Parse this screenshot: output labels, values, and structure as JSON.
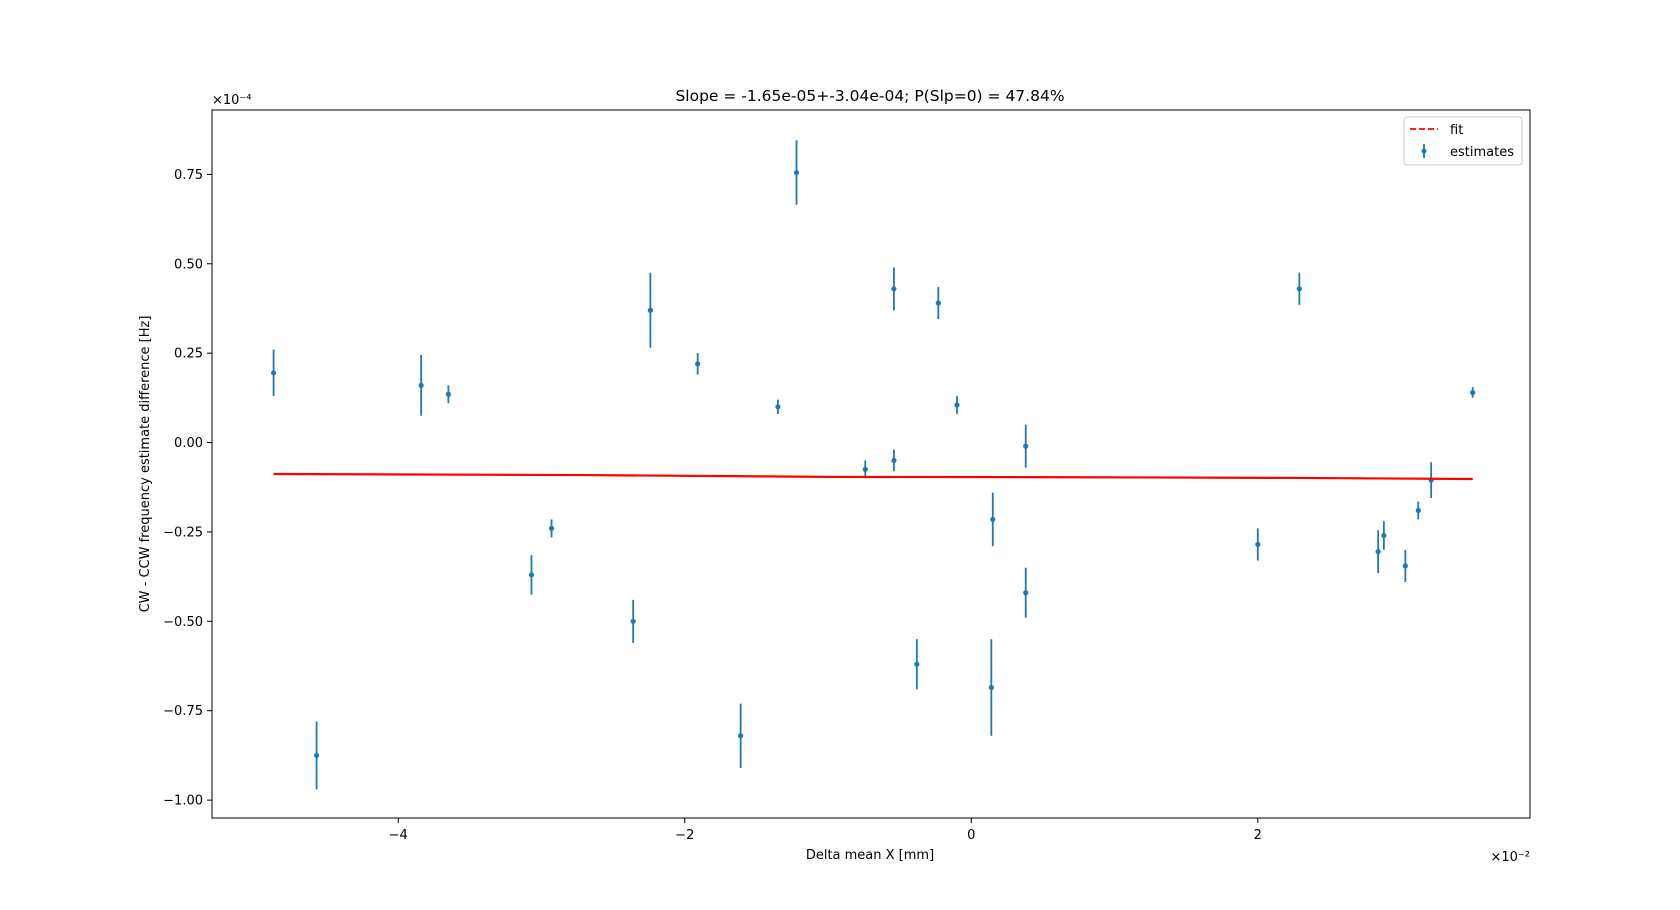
{
  "chart_data": {
    "type": "scatter",
    "title": "Slope = -1.65e-05+-3.04e-04; P(Slp=0) = 47.84%",
    "xlabel": "Delta mean X [mm]",
    "ylabel": "CW - CCW frequency estimate difference [Hz]",
    "x_multiplier": "×10⁻²",
    "y_multiplier": "×10⁻⁴",
    "xlim": [
      -5.3,
      3.9
    ],
    "ylim": [
      -1.05,
      0.93
    ],
    "x_ticks": [
      -4,
      -2,
      0,
      2
    ],
    "x_tick_labels": [
      "−4",
      "−2",
      "0",
      "2"
    ],
    "y_ticks": [
      -1.0,
      -0.75,
      -0.5,
      -0.25,
      0.0,
      0.25,
      0.5,
      0.75
    ],
    "y_tick_labels": [
      "−1.00",
      "−0.75",
      "−0.50",
      "−0.25",
      "0.00",
      "0.25",
      "0.50",
      "0.75"
    ],
    "grid": false,
    "legend_position": "top-right",
    "legend": [
      "fit",
      "estimates"
    ],
    "colors": {
      "estimates": "#1f77b4",
      "fit": "#ff0000"
    },
    "series": [
      {
        "name": "estimates",
        "kind": "errorbar",
        "points": [
          {
            "x": -4.87,
            "y": 0.195,
            "err": 0.065
          },
          {
            "x": -4.57,
            "y": -0.875,
            "err": 0.095
          },
          {
            "x": -3.84,
            "y": 0.16,
            "err": 0.085
          },
          {
            "x": -3.65,
            "y": 0.135,
            "err": 0.025
          },
          {
            "x": -3.07,
            "y": -0.37,
            "err": 0.055
          },
          {
            "x": -2.93,
            "y": -0.24,
            "err": 0.025
          },
          {
            "x": -2.36,
            "y": -0.5,
            "err": 0.06
          },
          {
            "x": -2.24,
            "y": 0.37,
            "err": 0.105
          },
          {
            "x": -1.91,
            "y": 0.22,
            "err": 0.03
          },
          {
            "x": -1.61,
            "y": -0.82,
            "err": 0.09
          },
          {
            "x": -1.35,
            "y": 0.1,
            "err": 0.02
          },
          {
            "x": -1.22,
            "y": 0.755,
            "err": 0.09
          },
          {
            "x": -0.74,
            "y": -0.075,
            "err": 0.025
          },
          {
            "x": -0.54,
            "y": 0.43,
            "err": 0.06
          },
          {
            "x": -0.54,
            "y": -0.05,
            "err": 0.03
          },
          {
            "x": -0.38,
            "y": -0.62,
            "err": 0.07
          },
          {
            "x": -0.23,
            "y": 0.39,
            "err": 0.045
          },
          {
            "x": -0.1,
            "y": 0.105,
            "err": 0.025
          },
          {
            "x": 0.14,
            "y": -0.685,
            "err": 0.135
          },
          {
            "x": 0.15,
            "y": -0.215,
            "err": 0.075
          },
          {
            "x": 0.38,
            "y": -0.01,
            "err": 0.06
          },
          {
            "x": 0.38,
            "y": -0.42,
            "err": 0.07
          },
          {
            "x": 2.0,
            "y": -0.285,
            "err": 0.045
          },
          {
            "x": 2.29,
            "y": 0.43,
            "err": 0.045
          },
          {
            "x": 2.84,
            "y": -0.305,
            "err": 0.06
          },
          {
            "x": 2.88,
            "y": -0.26,
            "err": 0.04
          },
          {
            "x": 3.03,
            "y": -0.345,
            "err": 0.045
          },
          {
            "x": 3.12,
            "y": -0.19,
            "err": 0.025
          },
          {
            "x": 3.21,
            "y": -0.105,
            "err": 0.05
          },
          {
            "x": 3.5,
            "y": 0.14,
            "err": 0.015
          }
        ]
      },
      {
        "name": "fit",
        "kind": "line",
        "style": "dashed",
        "points": [
          {
            "x": -4.87,
            "y": -0.088
          },
          {
            "x": -2.7,
            "y": -0.091
          },
          {
            "x": -1.0,
            "y": -0.096
          },
          {
            "x": 0.7,
            "y": -0.097
          },
          {
            "x": 2.3,
            "y": -0.099
          },
          {
            "x": 3.5,
            "y": -0.102
          }
        ]
      }
    ]
  }
}
